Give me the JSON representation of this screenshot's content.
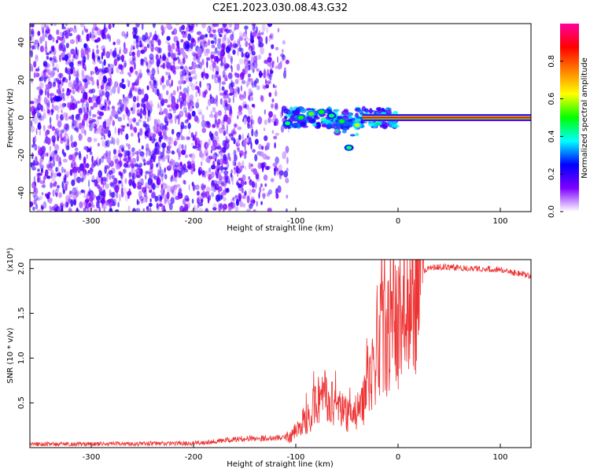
{
  "figure": {
    "title": "C2E1.2023.030.08.43.G32"
  },
  "chart_data": [
    {
      "type": "heatmap",
      "xlabel": "Height of straight line (km)",
      "ylabel": "Frequency (Hz)",
      "xlim": [
        -360,
        130
      ],
      "ylim": [
        -50,
        50
      ],
      "x_ticks": [
        -300,
        -200,
        -100,
        0,
        100
      ],
      "y_ticks": [
        -40,
        -20,
        0,
        20,
        40
      ],
      "colorbar": {
        "label": "Normalized spectral amplitude",
        "range": [
          0,
          1
        ],
        "ticks": [
          "0.0",
          "0.2",
          "0.4",
          "0.6",
          "0.8"
        ],
        "tick_values": [
          0,
          0.2,
          0.4,
          0.6,
          0.8
        ],
        "colormap": [
          "#ffffff",
          "#7f00ff",
          "#0000ff",
          "#00ffff",
          "#00ff00",
          "#ffff00",
          "#ff8000",
          "#ff0000",
          "#ff00a0"
        ]
      },
      "noise_region": {
        "x": [
          -360,
          -105
        ],
        "y": [
          -50,
          50
        ],
        "level": 0.15
      },
      "signal_line": {
        "x": [
          -35,
          130
        ],
        "y": 0,
        "level": 0.9
      },
      "features": [
        {
          "x": -333,
          "y": 10,
          "level": 0.25
        },
        {
          "x": -108,
          "y": -3,
          "level": 0.45
        },
        {
          "x": -95,
          "y": 0,
          "level": 0.5
        },
        {
          "x": -85,
          "y": 2,
          "level": 0.55
        },
        {
          "x": -75,
          "y": 3,
          "level": 0.5
        },
        {
          "x": -65,
          "y": 1,
          "level": 0.45
        },
        {
          "x": -55,
          "y": -2,
          "level": 0.5
        },
        {
          "x": -48,
          "y": -16,
          "level": 0.45
        },
        {
          "x": -40,
          "y": -4,
          "level": 0.6
        },
        {
          "x": -20,
          "y": 0,
          "level": 0.7
        },
        {
          "x": -5,
          "y": 0,
          "level": 0.75
        }
      ]
    },
    {
      "type": "line",
      "xlabel": "Height of straight line (km)",
      "ylabel": "SNR (10 * v/v)",
      "y_multiplier": "(x10⁴)",
      "xlim": [
        -360,
        130
      ],
      "ylim": [
        0,
        21000
      ],
      "x_ticks": [
        -300,
        -200,
        -100,
        0,
        100
      ],
      "y_ticks": [
        5000,
        10000,
        15000,
        20000
      ],
      "y_tick_labels": [
        "0.5",
        "1.0",
        "1.5",
        "2.0"
      ],
      "color": "#ee3333",
      "series": [
        {
          "x": [
            -360,
            -300,
            -200,
            -150,
            -120,
            -105,
            -95,
            -85,
            -75,
            -65,
            -55,
            -45,
            -35,
            -25,
            -20,
            -15,
            -10,
            -5,
            0,
            5,
            10,
            15,
            20,
            25,
            30,
            40,
            60,
            80,
            100,
            110,
            120,
            130
          ],
          "y": [
            400,
            400,
            500,
            1000,
            1100,
            1200,
            2500,
            4000,
            6000,
            5000,
            4000,
            3500,
            4500,
            9000,
            11000,
            13000,
            12500,
            13500,
            14000,
            15500,
            16000,
            17500,
            19000,
            19800,
            20100,
            20200,
            20100,
            20000,
            19900,
            19600,
            19400,
            19200
          ]
        }
      ]
    }
  ]
}
